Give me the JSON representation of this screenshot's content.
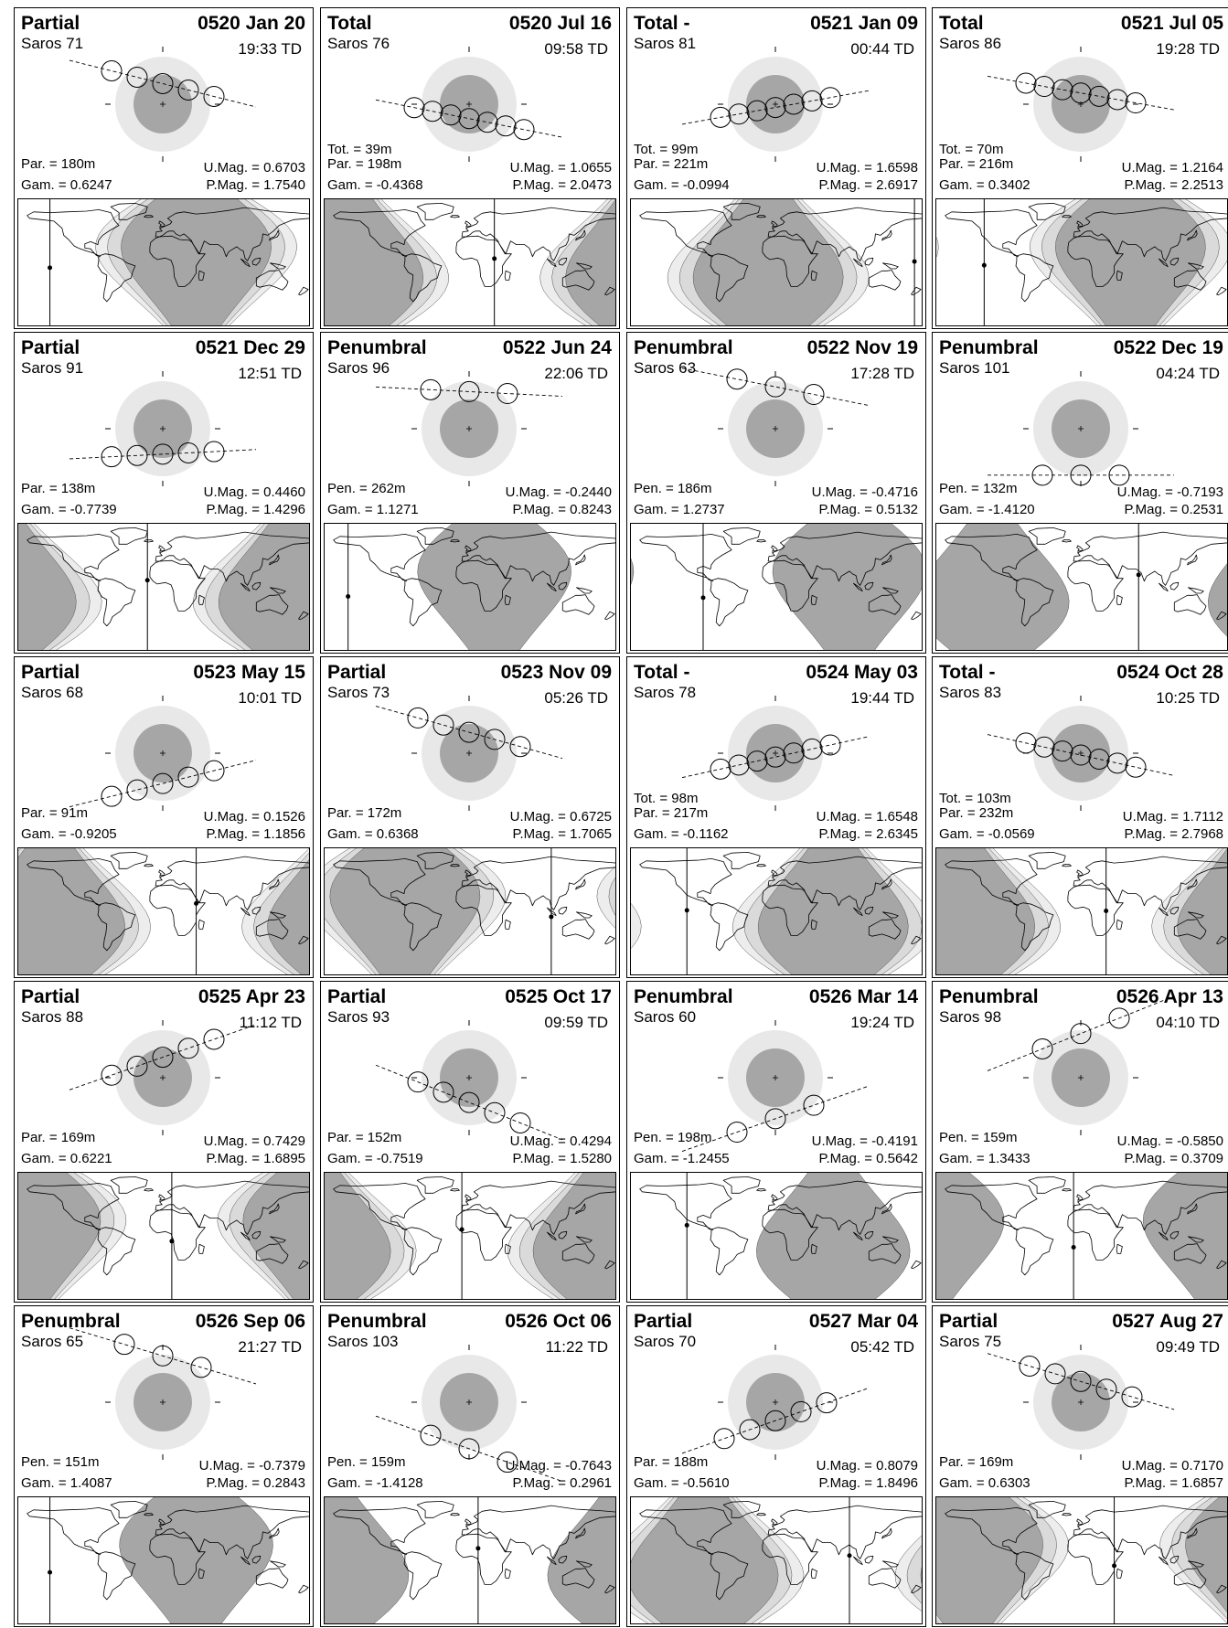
{
  "units": {
    "time_suffix": "TD"
  },
  "colors": {
    "penumbra": "#e8e8e8",
    "umbra": "#a6a6a6",
    "map_shade_dark": "#a6a6a6",
    "map_shade_light": "#dadada",
    "map_shade_lighter": "#ededed"
  },
  "eclipses": [
    {
      "type": "Partial",
      "date": "0520 Jan 20",
      "saros": "Saros  71",
      "time": "19:33 TD",
      "tot": "",
      "dur": "Par. = 180m",
      "gam": "Gam. = 0.6247",
      "umag": "U.Mag. = 0.6703",
      "pmag": "P.Mag. = 1.7540",
      "gamma": 0.6247,
      "slope": -0.25,
      "moons": 5,
      "day_lon": -140
    },
    {
      "type": "Total",
      "date": "0520 Jul 16",
      "saros": "Saros  76",
      "time": "09:58 TD",
      "tot": "Tot. =  39m",
      "dur": "Par. = 198m",
      "gam": "Gam. = -0.4368",
      "umag": "U.Mag. = 1.0655",
      "pmag": "P.Mag. = 2.0473",
      "gamma": -0.4368,
      "slope": -0.2,
      "moons": 7,
      "day_lon": 30
    },
    {
      "type": "Total  -",
      "date": "0521 Jan 09",
      "saros": "Saros  81",
      "time": "00:44 TD",
      "tot": "Tot. =  99m",
      "dur": "Par. = 221m",
      "gam": "Gam. = -0.0994",
      "umag": "U.Mag. = 1.6598",
      "pmag": "P.Mag. = 2.6917",
      "gamma": -0.0994,
      "slope": 0.18,
      "moons": 7,
      "day_lon": 170
    },
    {
      "type": "Total",
      "date": "0521 Jul 05",
      "saros": "Saros  86",
      "time": "19:28 TD",
      "tot": "Tot. =  70m",
      "dur": "Par. = 216m",
      "gam": "Gam. = 0.3402",
      "umag": "U.Mag. = 1.2164",
      "pmag": "P.Mag. = 2.2513",
      "gamma": 0.3402,
      "slope": -0.18,
      "moons": 7,
      "day_lon": -120
    },
    {
      "type": "Partial",
      "date": "0521 Dec 29",
      "saros": "Saros  91",
      "time": "12:51 TD",
      "tot": "",
      "dur": "Par. = 138m",
      "gam": "Gam. = -0.7739",
      "umag": "U.Mag. = 0.4460",
      "pmag": "P.Mag. = 1.4296",
      "gamma": -0.7739,
      "slope": 0.05,
      "moons": 5,
      "day_lon": -20
    },
    {
      "type": "Penumbral",
      "date": "0522 Jun 24",
      "saros": "Saros  96",
      "time": "22:06 TD",
      "tot": "",
      "dur": "Pen. = 262m",
      "gam": "Gam. = 1.1271",
      "umag": "U.Mag. = -0.2440",
      "pmag": "P.Mag. = 0.8243",
      "gamma": 1.1271,
      "slope": -0.05,
      "moons": 3,
      "day_lon": -150
    },
    {
      "type": "Penumbral",
      "date": "0522 Nov 19",
      "saros": "Saros  63",
      "time": "17:28 TD",
      "tot": "",
      "dur": "Pen. = 186m",
      "gam": "Gam. = 1.2737",
      "umag": "U.Mag. = -0.4716",
      "pmag": "P.Mag. = 0.5132",
      "gamma": 1.2737,
      "slope": -0.2,
      "moons": 3,
      "day_lon": -90
    },
    {
      "type": "Penumbral",
      "date": "0522 Dec 19",
      "saros": "Saros 101",
      "time": "04:24 TD",
      "tot": "",
      "dur": "Pen. = 132m",
      "gam": "Gam. = -1.4120",
      "umag": "U.Mag. = -0.7193",
      "pmag": "P.Mag. = 0.2531",
      "gamma": -1.412,
      "slope": 0.0,
      "moons": 3,
      "day_lon": 70
    },
    {
      "type": "Partial",
      "date": "0523 May 15",
      "saros": "Saros  68",
      "time": "10:01 TD",
      "tot": "",
      "dur": "Par. =  91m",
      "gam": "Gam. = -0.9205",
      "umag": "U.Mag. = 0.1526",
      "pmag": "P.Mag. = 1.1856",
      "gamma": -0.9205,
      "slope": 0.25,
      "moons": 5,
      "day_lon": 40
    },
    {
      "type": "Partial",
      "date": "0523 Nov 09",
      "saros": "Saros  73",
      "time": "05:26 TD",
      "tot": "",
      "dur": "Par. = 172m",
      "gam": "Gam. = 0.6368",
      "umag": "U.Mag. = 0.6725",
      "pmag": "P.Mag. = 1.7065",
      "gamma": 0.6368,
      "slope": -0.28,
      "moons": 5,
      "day_lon": 100
    },
    {
      "type": "Total  -",
      "date": "0524 May 03",
      "saros": "Saros  78",
      "time": "19:44 TD",
      "tot": "Tot. =  98m",
      "dur": "Par. = 217m",
      "gam": "Gam. = -0.1162",
      "umag": "U.Mag. = 1.6548",
      "pmag": "P.Mag. = 2.6345",
      "gamma": -0.1162,
      "slope": 0.22,
      "moons": 7,
      "day_lon": -110
    },
    {
      "type": "Total  -",
      "date": "0524 Oct 28",
      "saros": "Saros  83",
      "time": "10:25 TD",
      "tot": "Tot. = 103m",
      "dur": "Par. = 232m",
      "gam": "Gam. = -0.0569",
      "umag": "U.Mag. = 1.7112",
      "pmag": "P.Mag. = 2.7968",
      "gamma": -0.0569,
      "slope": -0.22,
      "moons": 7,
      "day_lon": 30
    },
    {
      "type": "Partial",
      "date": "0525 Apr 23",
      "saros": "Saros  88",
      "time": "11:12 TD",
      "tot": "",
      "dur": "Par. = 169m",
      "gam": "Gam. = 0.6221",
      "umag": "U.Mag. = 0.7429",
      "pmag": "P.Mag. = 1.6895",
      "gamma": 0.6221,
      "slope": 0.35,
      "moons": 5,
      "day_lon": 10
    },
    {
      "type": "Partial",
      "date": "0525 Oct 17",
      "saros": "Saros  93",
      "time": "09:59 TD",
      "tot": "",
      "dur": "Par. = 152m",
      "gam": "Gam. = -0.7519",
      "umag": "U.Mag. = 0.4294",
      "pmag": "P.Mag. = 1.5280",
      "gamma": -0.7519,
      "slope": -0.4,
      "moons": 5,
      "day_lon": -10
    },
    {
      "type": "Penumbral",
      "date": "0526 Mar 14",
      "saros": "Saros  60",
      "time": "19:24 TD",
      "tot": "",
      "dur": "Pen. = 198m",
      "gam": "Gam. = -1.2455",
      "umag": "U.Mag. = -0.4191",
      "pmag": "P.Mag. = 0.5642",
      "gamma": -1.2455,
      "slope": 0.35,
      "moons": 3,
      "day_lon": -110
    },
    {
      "type": "Penumbral",
      "date": "0526 Apr 13",
      "saros": "Saros  98",
      "time": "04:10 TD",
      "tot": "",
      "dur": "Pen. = 159m",
      "gam": "Gam. = 1.3433",
      "umag": "U.Mag. = -0.5850",
      "pmag": "P.Mag. = 0.3709",
      "gamma": 1.3433,
      "slope": 0.4,
      "moons": 3,
      "day_lon": -10
    },
    {
      "type": "Penumbral",
      "date": "0526 Sep 06",
      "saros": "Saros  65",
      "time": "21:27 TD",
      "tot": "",
      "dur": "Pen. = 151m",
      "gam": "Gam. = 1.4087",
      "umag": "U.Mag. = -0.7379",
      "pmag": "P.Mag. = 0.2843",
      "gamma": 1.4087,
      "slope": -0.3,
      "moons": 3,
      "day_lon": -140
    },
    {
      "type": "Penumbral",
      "date": "0526 Oct 06",
      "saros": "Saros 103",
      "time": "11:22 TD",
      "tot": "",
      "dur": "Pen. = 159m",
      "gam": "Gam. = -1.4128",
      "umag": "U.Mag. = -0.7643",
      "pmag": "P.Mag. = 0.2961",
      "gamma": -1.4128,
      "slope": -0.35,
      "moons": 3,
      "day_lon": 10
    },
    {
      "type": "Partial",
      "date": "0527 Mar 04",
      "saros": "Saros  70",
      "time": "05:42 TD",
      "tot": "",
      "dur": "Par. = 188m",
      "gam": "Gam. = -0.5610",
      "umag": "U.Mag. = 0.8079",
      "pmag": "P.Mag. = 1.8496",
      "gamma": -0.561,
      "slope": 0.35,
      "moons": 5,
      "day_lon": 90
    },
    {
      "type": "Partial",
      "date": "0527 Aug 27",
      "saros": "Saros  75",
      "time": "09:49 TD",
      "tot": "",
      "dur": "Par. = 169m",
      "gam": "Gam. = 0.6303",
      "umag": "U.Mag. = 0.7170",
      "pmag": "P.Mag. = 1.6857",
      "gamma": 0.6303,
      "slope": -0.3,
      "moons": 5,
      "day_lon": 40
    }
  ]
}
